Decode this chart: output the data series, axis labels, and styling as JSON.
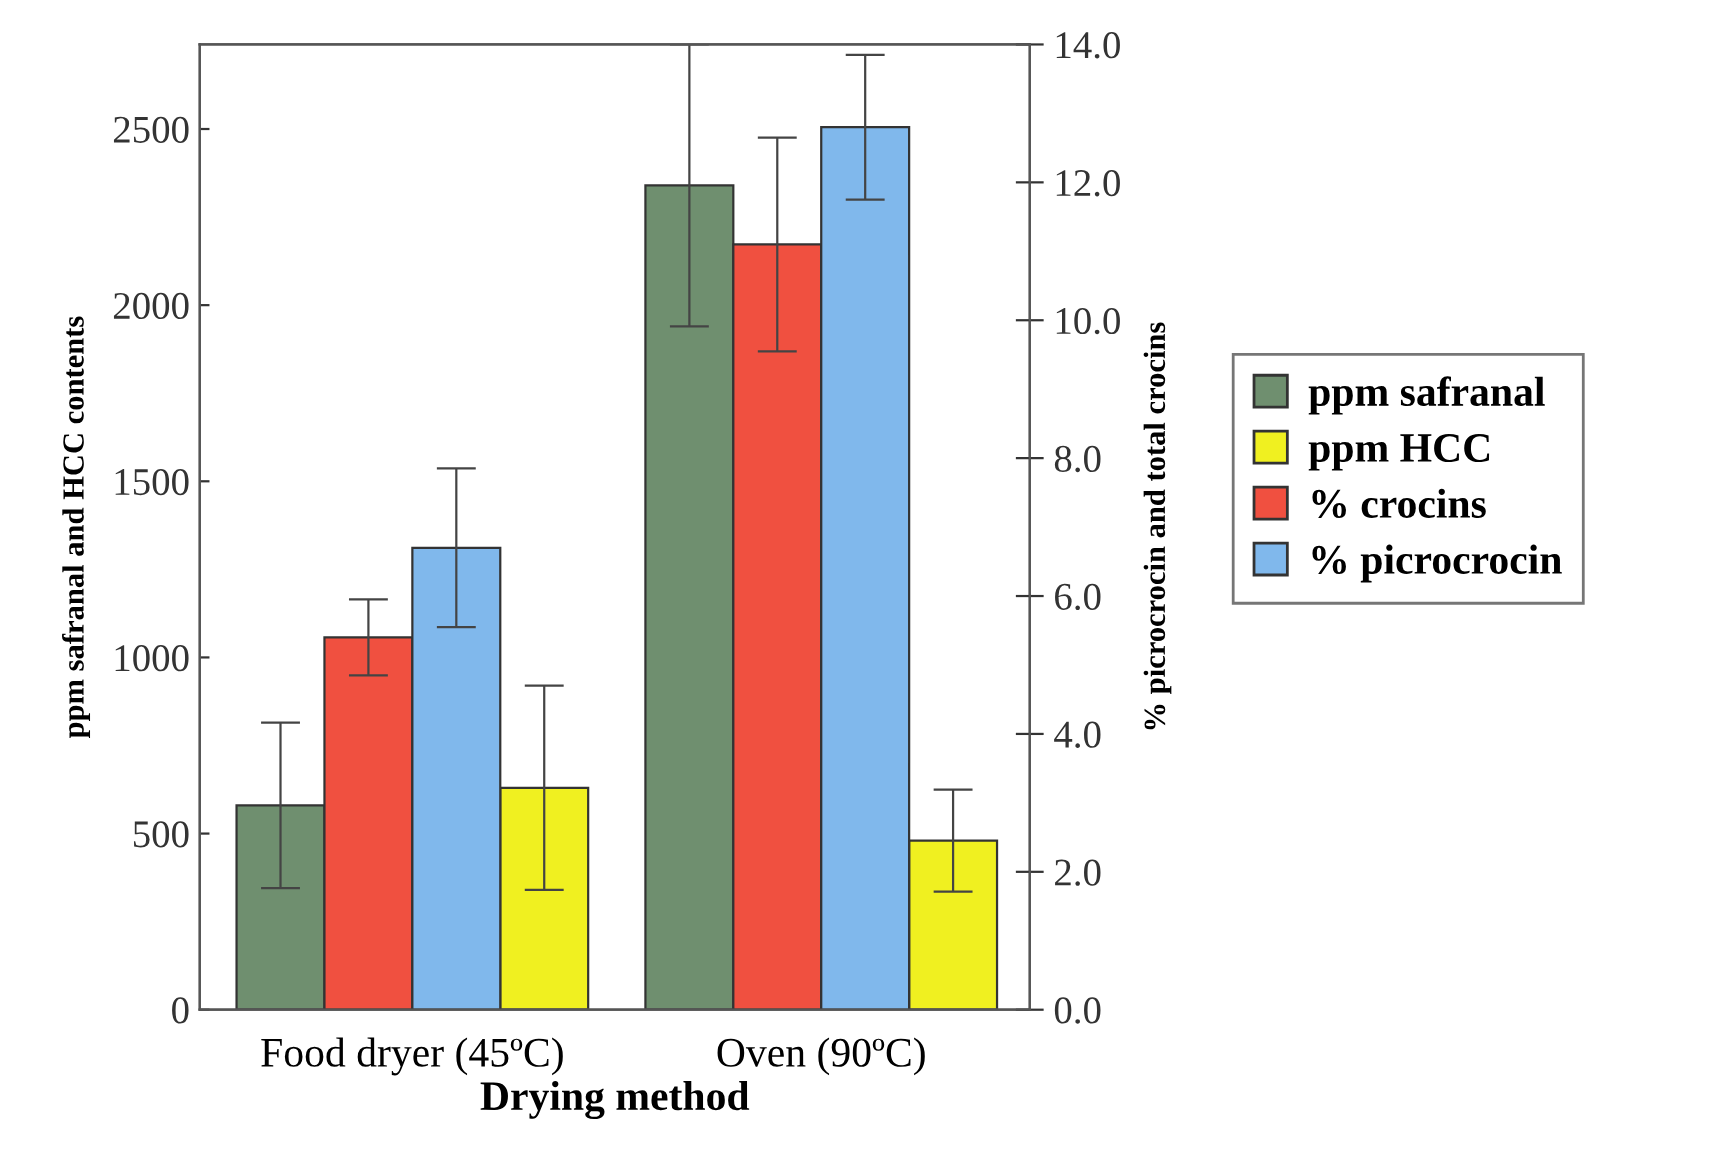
{
  "chart_data": {
    "type": "bar",
    "categories": [
      "Food dryer (45ºC)",
      "Oven (90ºC)"
    ],
    "xlabel": "Drying method",
    "ylabel": "ppm safranal and HCC contents",
    "y2label": "% picrocrocin and total crocins",
    "series": [
      {
        "name": "ppm safranal",
        "color": "#6f8f6f",
        "values": [
          580,
          2340
        ],
        "errors": [
          235,
          400
        ]
      },
      {
        "name": "% crocins",
        "color": "#f05040",
        "axis": "y2",
        "values": [
          5.4,
          11.1
        ],
        "errors": [
          0.55,
          1.55
        ]
      },
      {
        "name": "% picrocrocin",
        "color": "#80b8ec",
        "axis": "y2",
        "values": [
          6.7,
          12.8
        ],
        "errors": [
          1.15,
          1.05
        ]
      },
      {
        "name": "ppm HCC",
        "color": "#f0f020",
        "values": [
          630,
          480
        ],
        "errors": [
          290,
          145
        ]
      }
    ],
    "ylim": [
      0,
      2740
    ],
    "yticks": [
      0,
      500,
      1000,
      1500,
      2000,
      2500
    ],
    "y2lim": [
      0,
      14.0
    ],
    "y2ticks": [
      {
        "value": 0,
        "label": "0.0"
      },
      {
        "value": 2,
        "label": "2.0"
      },
      {
        "value": 4,
        "label": "4.0"
      },
      {
        "value": 6,
        "label": "6.0"
      },
      {
        "value": 8,
        "label": "8.0"
      },
      {
        "value": 10,
        "label": "10.0"
      },
      {
        "value": 12,
        "label": "12.0"
      },
      {
        "value": 14,
        "label": "14.0"
      }
    ],
    "grid": false,
    "legend": "right"
  }
}
